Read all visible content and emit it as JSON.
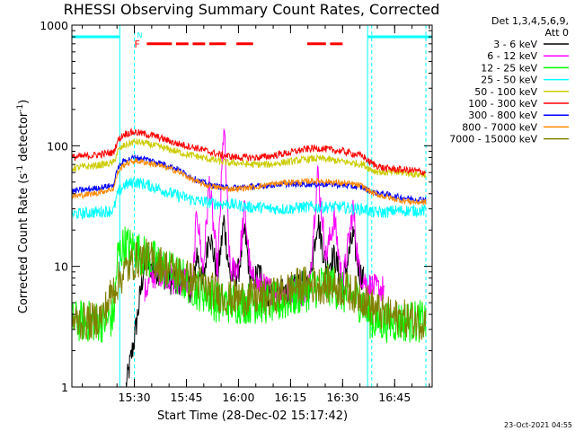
{
  "chart_data": {
    "type": "line",
    "title": "RHESSI Observing Summary Count Rates, Corrected",
    "xlabel": "Start Time (28-Dec-02 15:17:42)",
    "ylabel_main": "Corrected Count Rate (s",
    "ylabel_sup": "-1",
    "ylabel_mid": " detector",
    "ylabel_sup2": "-1",
    "ylabel_end": ")",
    "yscale": "log",
    "ylim": [
      1,
      1000
    ],
    "xlim": [
      15.2,
      16.93
    ],
    "x_ticks": [
      {
        "value": 15.5,
        "label": "15:30"
      },
      {
        "value": 15.75,
        "label": "15:45"
      },
      {
        "value": 16.0,
        "label": "16:00"
      },
      {
        "value": 16.25,
        "label": "16:15"
      },
      {
        "value": 16.5,
        "label": "16:30"
      },
      {
        "value": 16.75,
        "label": "16:45"
      }
    ],
    "y_ticks": [
      {
        "value": 1,
        "label": "1"
      },
      {
        "value": 10,
        "label": "10"
      },
      {
        "value": 100,
        "label": "100"
      },
      {
        "value": 1000,
        "label": "1000"
      }
    ],
    "legend_header": [
      "Det 1,3,4,5,6,9,",
      "Att 0"
    ],
    "series": [
      {
        "name": "3 - 6 keV",
        "color": "#000000",
        "x": [
          15.46,
          15.5,
          15.55,
          15.58,
          15.62,
          15.66,
          15.7,
          15.74,
          15.78,
          15.8,
          15.83,
          15.86,
          15.9,
          15.93,
          15.96,
          16.0,
          16.03,
          16.06,
          16.1,
          16.14,
          16.2,
          16.26,
          16.3,
          16.34,
          16.38,
          16.42,
          16.46,
          16.5,
          16.55,
          16.58,
          16.6
        ],
        "values": [
          1.0,
          2.5,
          11,
          10,
          9,
          8,
          7,
          8,
          6,
          13,
          7,
          20,
          8,
          24,
          8,
          9,
          20,
          7,
          9,
          6,
          6,
          6.5,
          7,
          7,
          25,
          10,
          12,
          7,
          18,
          9,
          8
        ]
      },
      {
        "name": "6 - 12 keV",
        "color": "#ff00ff",
        "x": [
          15.55,
          15.58,
          15.62,
          15.66,
          15.7,
          15.74,
          15.78,
          15.8,
          15.83,
          15.86,
          15.9,
          15.93,
          15.96,
          16.0,
          16.03,
          16.06,
          16.1,
          16.14,
          16.2,
          16.26,
          16.3,
          16.34,
          16.38,
          16.42,
          16.46,
          16.5,
          16.55,
          16.58,
          16.62,
          16.66,
          16.7
        ],
        "values": [
          6,
          8,
          9,
          8.5,
          7,
          8,
          6.5,
          30,
          9,
          50,
          9,
          150,
          9,
          10,
          30,
          8,
          7,
          6.5,
          6,
          6.5,
          6,
          7,
          60,
          12,
          25,
          7,
          30,
          9,
          7,
          6.5,
          6.5
        ]
      },
      {
        "name": "12 - 25 keV",
        "color": "#00ff00",
        "x": [
          15.2,
          15.3,
          15.35,
          15.4,
          15.42,
          15.45,
          15.5,
          15.55,
          15.6,
          15.65,
          15.7,
          15.75,
          15.8,
          15.85,
          15.9,
          15.95,
          16.0,
          16.05,
          16.1,
          16.15,
          16.2,
          16.25,
          16.3,
          16.35,
          16.4,
          16.45,
          16.5,
          16.55,
          16.6,
          16.62,
          16.65,
          16.7,
          16.75,
          16.8,
          16.85,
          16.9
        ],
        "values": [
          3.5,
          3.5,
          3.5,
          3.8,
          12,
          15,
          14,
          12,
          11,
          9.5,
          8.5,
          7.5,
          6.5,
          6,
          5,
          5,
          5,
          5,
          5,
          5,
          5,
          5.5,
          6,
          6.5,
          7,
          7,
          6,
          5.5,
          5,
          4,
          3.5,
          3.5,
          3.5,
          3.5,
          3.5,
          3.5
        ]
      },
      {
        "name": "25 - 50 keV",
        "color": "#00ffff",
        "x": [
          15.2,
          15.3,
          15.4,
          15.42,
          15.45,
          15.5,
          15.55,
          15.6,
          15.65,
          15.7,
          15.75,
          15.8,
          15.85,
          15.9,
          15.95,
          16.0,
          16.05,
          16.1,
          16.15,
          16.2,
          16.25,
          16.3,
          16.35,
          16.4,
          16.45,
          16.5,
          16.55,
          16.6,
          16.62,
          16.65,
          16.7,
          16.75,
          16.8,
          16.85,
          16.9
        ],
        "values": [
          27,
          28,
          29,
          40,
          47,
          50,
          48,
          45,
          42,
          39,
          37,
          35,
          34,
          33,
          33,
          32,
          31,
          31,
          30,
          30,
          30,
          31,
          31,
          31,
          31,
          31,
          30,
          30,
          29,
          28,
          28,
          29,
          29,
          29,
          29
        ]
      },
      {
        "name": "50 - 100 keV",
        "color": "#cccc00",
        "x": [
          15.2,
          15.3,
          15.4,
          15.42,
          15.45,
          15.5,
          15.55,
          15.6,
          15.65,
          15.7,
          15.75,
          15.8,
          15.85,
          15.9,
          15.95,
          16.0,
          16.05,
          16.1,
          16.15,
          16.2,
          16.25,
          16.3,
          16.35,
          16.4,
          16.45,
          16.5,
          16.55,
          16.6,
          16.62,
          16.65,
          16.7,
          16.75,
          16.8,
          16.85,
          16.9
        ],
        "values": [
          65,
          68,
          72,
          90,
          100,
          108,
          105,
          100,
          95,
          90,
          85,
          82,
          78,
          75,
          72,
          72,
          70,
          70,
          70,
          72,
          74,
          76,
          78,
          78,
          76,
          74,
          72,
          70,
          66,
          62,
          60,
          60,
          60,
          58,
          58
        ]
      },
      {
        "name": "100 - 300 keV",
        "color": "#ff0000",
        "x": [
          15.2,
          15.3,
          15.4,
          15.42,
          15.45,
          15.5,
          15.55,
          15.6,
          15.65,
          15.7,
          15.75,
          15.8,
          15.85,
          15.9,
          15.95,
          16.0,
          16.05,
          16.1,
          16.15,
          16.2,
          16.25,
          16.3,
          16.35,
          16.4,
          16.45,
          16.5,
          16.55,
          16.6,
          16.62,
          16.65,
          16.7,
          16.75,
          16.8,
          16.85,
          16.9
        ],
        "values": [
          80,
          83,
          88,
          110,
          125,
          130,
          125,
          120,
          112,
          105,
          100,
          96,
          90,
          85,
          82,
          80,
          80,
          80,
          82,
          85,
          88,
          92,
          95,
          95,
          92,
          90,
          86,
          82,
          75,
          70,
          65,
          64,
          63,
          62,
          60
        ]
      },
      {
        "name": "300 - 800 keV",
        "color": "#0000ff",
        "x": [
          15.2,
          15.3,
          15.4,
          15.42,
          15.45,
          15.5,
          15.55,
          15.6,
          15.65,
          15.7,
          15.75,
          15.8,
          15.85,
          15.9,
          15.95,
          16.0,
          16.05,
          16.1,
          16.15,
          16.2,
          16.25,
          16.3,
          16.35,
          16.4,
          16.45,
          16.5,
          16.55,
          16.6,
          16.62,
          16.65,
          16.7,
          16.75,
          16.8,
          16.85,
          16.9
        ],
        "values": [
          42,
          44,
          47,
          65,
          75,
          80,
          78,
          74,
          70,
          65,
          58,
          52,
          48,
          46,
          45,
          45,
          46,
          46,
          47,
          48,
          48,
          48,
          48,
          48,
          48,
          47,
          46,
          45,
          43,
          41,
          40,
          38,
          37,
          36,
          36
        ]
      },
      {
        "name": "800 - 7000 keV",
        "color": "#ff8800",
        "x": [
          15.2,
          15.3,
          15.4,
          15.42,
          15.45,
          15.5,
          15.55,
          15.6,
          15.65,
          15.7,
          15.75,
          15.8,
          15.85,
          15.9,
          15.95,
          16.0,
          16.05,
          16.1,
          16.15,
          16.2,
          16.25,
          16.3,
          16.35,
          16.4,
          16.45,
          16.5,
          16.55,
          16.6,
          16.62,
          16.65,
          16.7,
          16.75,
          16.8,
          16.85,
          16.9
        ],
        "values": [
          38,
          40,
          44,
          60,
          70,
          75,
          73,
          70,
          66,
          62,
          56,
          50,
          47,
          45,
          44,
          44,
          45,
          46,
          48,
          49,
          50,
          50,
          51,
          51,
          50,
          49,
          48,
          46,
          43,
          40,
          38,
          36,
          35,
          34,
          34
        ]
      },
      {
        "name": "7000 - 15000 keV",
        "color": "#808000",
        "x": [
          15.2,
          15.3,
          15.35,
          15.4,
          15.45,
          15.5,
          15.55,
          15.6,
          15.65,
          15.7,
          15.75,
          15.8,
          15.85,
          15.9,
          15.95,
          16.0,
          16.05,
          16.1,
          16.15,
          16.2,
          16.25,
          16.3,
          16.35,
          16.4,
          16.45,
          16.5,
          16.55,
          16.6,
          16.62,
          16.65,
          16.7,
          16.75,
          16.8,
          16.85,
          16.9
        ],
        "values": [
          3.5,
          3.5,
          4,
          6.5,
          9,
          11,
          12,
          11,
          10,
          9,
          8,
          7.5,
          6.5,
          6,
          5.5,
          5.5,
          5.5,
          5.5,
          5.5,
          6,
          6.5,
          7,
          7,
          7,
          7,
          6.5,
          6,
          5.5,
          5,
          4.5,
          4,
          3.8,
          3.7,
          3.6,
          3.5
        ]
      }
    ],
    "attenuator_bar": {
      "color": "#00ffff",
      "segments": [
        [
          15.2,
          15.43
        ],
        [
          16.62,
          16.93
        ]
      ],
      "value": 800
    },
    "flare_flag": {
      "label": "F",
      "color": "#ff0000",
      "segments": [
        [
          15.56,
          15.68
        ],
        [
          15.7,
          15.76
        ],
        [
          15.78,
          15.84
        ],
        [
          15.86,
          15.94
        ],
        [
          15.99,
          16.07
        ],
        [
          16.33,
          16.42
        ],
        [
          16.44,
          16.5
        ]
      ],
      "value": 700
    },
    "night_flag": {
      "label": "N",
      "color": "#00ffff"
    },
    "vertical_markers": [
      {
        "x": 15.43,
        "style": "solid",
        "color": "#00ffff"
      },
      {
        "x": 15.5,
        "style": "dashed",
        "color": "#00ffff"
      },
      {
        "x": 16.62,
        "style": "solid",
        "color": "#00ffff"
      },
      {
        "x": 16.64,
        "style": "dashed",
        "color": "#00ffff"
      },
      {
        "x": 16.9,
        "style": "dashed",
        "color": "#00ffff"
      }
    ]
  },
  "footer_timestamp": "23-Oct-2021 04:55"
}
